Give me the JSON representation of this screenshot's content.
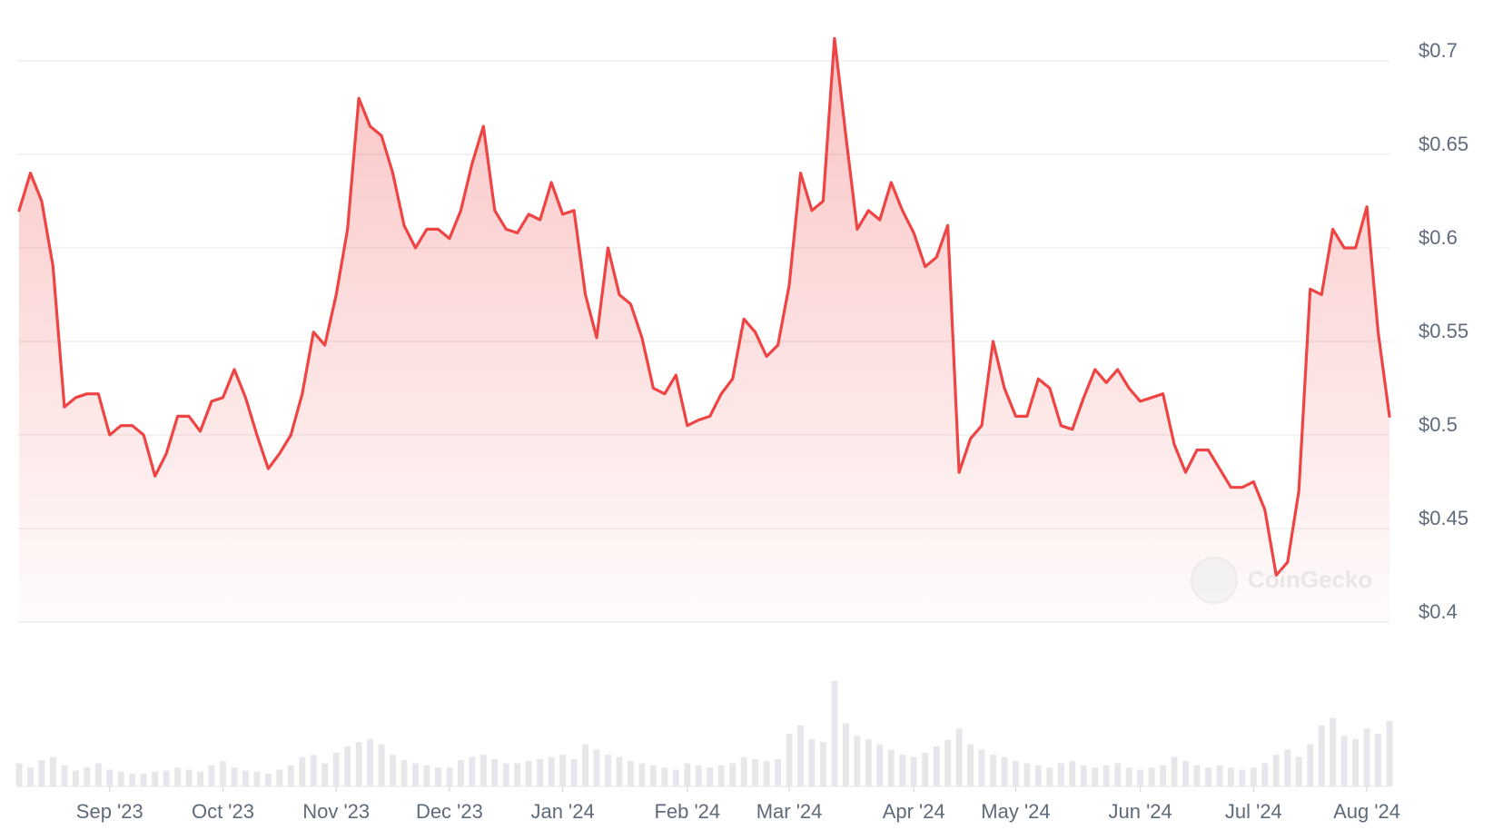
{
  "chart_data": {
    "type": "line",
    "categories": [
      null,
      null,
      null,
      null,
      null,
      null,
      null,
      null,
      "Sep '23",
      null,
      null,
      null,
      null,
      null,
      null,
      null,
      null,
      null,
      "Oct '23",
      null,
      null,
      null,
      null,
      null,
      null,
      null,
      null,
      null,
      "Nov '23",
      null,
      null,
      null,
      null,
      null,
      null,
      null,
      null,
      null,
      "Dec '23",
      null,
      null,
      null,
      null,
      null,
      null,
      null,
      null,
      null,
      "Jan '24",
      null,
      null,
      null,
      null,
      null,
      null,
      null,
      null,
      null,
      null,
      "Feb '24",
      null,
      null,
      null,
      null,
      null,
      null,
      null,
      null,
      "Mar '24",
      null,
      null,
      null,
      null,
      null,
      null,
      null,
      null,
      null,
      null,
      "Apr '24",
      null,
      null,
      null,
      null,
      null,
      null,
      null,
      null,
      "May '24",
      null,
      null,
      null,
      null,
      null,
      null,
      null,
      null,
      null,
      null,
      "Jun '24",
      null,
      null,
      null,
      null,
      null,
      null,
      null,
      null,
      null,
      "Jul '24",
      null,
      null,
      null,
      null,
      null,
      null,
      null,
      null,
      null,
      "Aug '24",
      null,
      null
    ],
    "series": [
      {
        "color": "#ef4444",
        "values": [
          0.62,
          0.64,
          0.625,
          0.59,
          0.515,
          0.52,
          0.522,
          0.522,
          0.5,
          0.505,
          0.505,
          0.5,
          0.478,
          0.49,
          0.51,
          0.51,
          0.502,
          0.518,
          0.52,
          0.535,
          0.52,
          0.5,
          0.482,
          0.49,
          0.5,
          0.522,
          0.555,
          0.548,
          0.575,
          0.61,
          0.68,
          0.665,
          0.66,
          0.64,
          0.612,
          0.6,
          0.61,
          0.61,
          0.605,
          0.62,
          0.645,
          0.665,
          0.62,
          0.61,
          0.608,
          0.618,
          0.615,
          0.635,
          0.618,
          0.62,
          0.575,
          0.552,
          0.6,
          0.575,
          0.57,
          0.552,
          0.525,
          0.522,
          0.532,
          0.505,
          0.508,
          0.51,
          0.522,
          0.53,
          0.562,
          0.555,
          0.542,
          0.548,
          0.58,
          0.64,
          0.62,
          0.625,
          0.712,
          0.66,
          0.61,
          0.62,
          0.615,
          0.635,
          0.62,
          0.608,
          0.59,
          0.595,
          0.612,
          0.48,
          0.498,
          0.505,
          0.55,
          0.525,
          0.51,
          0.51,
          0.53,
          0.525,
          0.505,
          0.503,
          0.52,
          0.535,
          0.528,
          0.535,
          0.525,
          0.518,
          0.52,
          0.522,
          0.495,
          0.48,
          0.492,
          0.492,
          0.482,
          0.472,
          0.472,
          0.475,
          0.46,
          0.425,
          0.432,
          0.47,
          0.578,
          0.575,
          0.61,
          0.6,
          0.6,
          0.622,
          0.555,
          0.51
        ]
      },
      {
        "color": "#e5e7eb",
        "axis": "y2",
        "values": [
          22,
          18,
          25,
          28,
          20,
          15,
          18,
          22,
          16,
          14,
          12,
          12,
          14,
          15,
          18,
          16,
          14,
          20,
          24,
          18,
          15,
          14,
          12,
          16,
          20,
          28,
          30,
          22,
          32,
          38,
          42,
          45,
          40,
          30,
          25,
          22,
          20,
          18,
          18,
          25,
          28,
          30,
          26,
          22,
          22,
          24,
          26,
          28,
          30,
          26,
          40,
          35,
          30,
          28,
          24,
          22,
          20,
          18,
          16,
          22,
          20,
          18,
          20,
          22,
          28,
          26,
          24,
          26,
          50,
          58,
          45,
          42,
          100,
          60,
          48,
          45,
          40,
          35,
          30,
          28,
          32,
          38,
          44,
          55,
          40,
          35,
          30,
          28,
          24,
          22,
          20,
          18,
          22,
          24,
          20,
          18,
          20,
          22,
          18,
          16,
          18,
          20,
          28,
          24,
          20,
          18,
          20,
          18,
          16,
          18,
          22,
          30,
          35,
          28,
          40,
          58,
          65,
          48,
          45,
          55,
          50,
          62
        ]
      }
    ],
    "ylim": [
      0.4,
      0.7
    ],
    "yticks": [
      {
        "value": 0.4,
        "label": "$0.4"
      },
      {
        "value": 0.45,
        "label": "$0.45"
      },
      {
        "value": 0.5,
        "label": "$0.5"
      },
      {
        "value": 0.55,
        "label": "$0.55"
      },
      {
        "value": 0.6,
        "label": "$0.6"
      },
      {
        "value": 0.65,
        "label": "$0.65"
      },
      {
        "value": 0.7,
        "label": "$0.7"
      }
    ],
    "y2lim": [
      0,
      100
    ],
    "grid": true,
    "watermark": "CoinGecko"
  }
}
